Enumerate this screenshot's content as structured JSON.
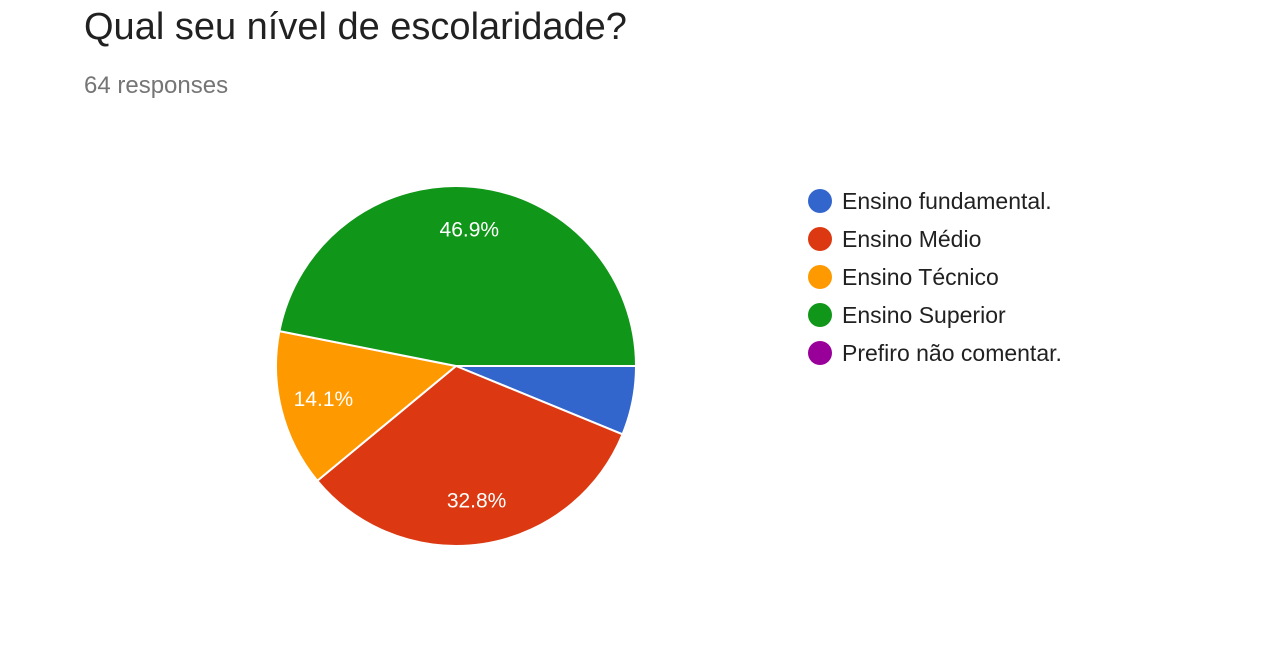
{
  "header": {
    "title": "Qual seu nível de escolaridade?",
    "responses": "64 responses"
  },
  "chart_data": {
    "type": "pie",
    "categories": [
      "Ensino fundamental.",
      "Ensino Médio",
      "Ensino Técnico",
      "Ensino Superior",
      "Prefiro não comentar."
    ],
    "values": [
      6.2,
      32.8,
      14.1,
      46.9,
      0
    ],
    "value_labels": [
      "",
      "32.8%",
      "14.1%",
      "46.9%",
      ""
    ],
    "colors": [
      "#3366cc",
      "#dc3912",
      "#ff9900",
      "#109618",
      "#990099"
    ],
    "legend_position": "right",
    "start": "3 o'clock",
    "direction": "clockwise"
  }
}
